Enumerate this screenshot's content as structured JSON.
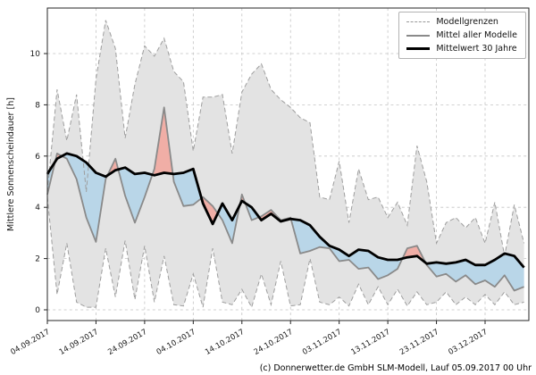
{
  "figure": {
    "caption": "(c) Donnerwetter.de GmbH SLM-Modell, Lauf 05.09.2017 00 Uhr"
  },
  "chart_data": {
    "type": "line",
    "ylabel": "Mittlere Sonnenscheindauer [h]",
    "xlabel": "",
    "ylim": [
      -0.45,
      11.8
    ],
    "y_ticks": [
      0,
      2,
      4,
      6,
      8,
      10
    ],
    "grid": true,
    "legend_position": "top-right",
    "x_tick_days": [
      0,
      10,
      20,
      30,
      40,
      50,
      60,
      70,
      80,
      90
    ],
    "x_tick_labels": [
      "04.09.2017",
      "14.09.2017",
      "24.09.2017",
      "04.10.2017",
      "14.10.2017",
      "24.10.2017",
      "03.11.2017",
      "13.11.2017",
      "23.11.2017",
      "03.12.2017"
    ],
    "x_days": [
      0,
      2,
      4,
      6,
      8,
      10,
      12,
      14,
      16,
      18,
      20,
      22,
      24,
      26,
      28,
      30,
      32,
      34,
      36,
      38,
      40,
      42,
      44,
      46,
      48,
      50,
      52,
      54,
      56,
      58,
      60,
      62,
      64,
      66,
      68,
      70,
      72,
      74,
      76,
      78,
      80,
      82,
      84,
      86,
      88,
      90,
      92,
      94,
      96,
      98
    ],
    "series": [
      {
        "name": "Modellgrenzen oben",
        "values": [
          4.6,
          8.6,
          6.6,
          8.4,
          4.6,
          9.0,
          11.3,
          10.2,
          6.7,
          8.8,
          10.3,
          9.9,
          10.6,
          9.3,
          8.9,
          6.2,
          8.3,
          8.3,
          8.4,
          6.1,
          8.5,
          9.2,
          9.6,
          8.6,
          8.2,
          7.9,
          7.5,
          7.3,
          4.4,
          4.3,
          5.8,
          3.4,
          5.5,
          4.3,
          4.4,
          3.6,
          4.2,
          3.3,
          6.4,
          5.0,
          2.6,
          3.4,
          3.6,
          3.2,
          3.6,
          2.6,
          4.2,
          2.1,
          4.1,
          2.6
        ]
      },
      {
        "name": "Modellgrenzen unten",
        "values": [
          4.4,
          0.6,
          2.6,
          0.3,
          0.1,
          0.1,
          2.4,
          0.5,
          2.7,
          0.4,
          2.5,
          0.3,
          2.1,
          0.2,
          0.15,
          1.4,
          0.1,
          2.4,
          0.3,
          0.2,
          0.8,
          0.1,
          1.4,
          0.2,
          1.9,
          0.15,
          0.2,
          2.0,
          0.3,
          0.2,
          0.5,
          0.15,
          1.0,
          0.2,
          0.9,
          0.2,
          0.8,
          0.15,
          0.7,
          0.2,
          0.3,
          0.7,
          0.2,
          0.5,
          0.2,
          0.6,
          0.2,
          0.7,
          0.2,
          0.3
        ]
      },
      {
        "name": "Mittel aller Modelle",
        "values": [
          4.5,
          6.1,
          5.9,
          5.1,
          3.6,
          2.65,
          5.1,
          5.9,
          4.45,
          3.4,
          4.4,
          5.5,
          7.9,
          5.0,
          4.05,
          4.1,
          4.4,
          4.05,
          3.5,
          2.6,
          4.5,
          3.5,
          3.65,
          3.9,
          3.5,
          3.6,
          2.2,
          2.3,
          2.45,
          2.4,
          1.9,
          1.95,
          1.6,
          1.65,
          1.2,
          1.35,
          1.6,
          2.4,
          2.5,
          1.75,
          1.3,
          1.4,
          1.1,
          1.35,
          1.0,
          1.15,
          0.9,
          1.35,
          0.75,
          0.9
        ]
      },
      {
        "name": "Mittelwert 30 Jahre",
        "values": [
          5.3,
          5.9,
          6.1,
          6.0,
          5.75,
          5.35,
          5.2,
          5.45,
          5.55,
          5.3,
          5.35,
          5.25,
          5.35,
          5.3,
          5.35,
          5.5,
          4.15,
          3.35,
          4.15,
          3.5,
          4.25,
          4.0,
          3.5,
          3.75,
          3.45,
          3.55,
          3.5,
          3.3,
          2.85,
          2.5,
          2.35,
          2.1,
          2.35,
          2.3,
          2.05,
          1.95,
          1.95,
          2.05,
          2.1,
          1.8,
          1.85,
          1.8,
          1.85,
          1.95,
          1.75,
          1.75,
          1.95,
          2.2,
          2.1,
          1.65
        ]
      }
    ],
    "legend": [
      {
        "label": "Modellgrenzen",
        "style": "dashed-gray"
      },
      {
        "label": "Mittel aller Modelle",
        "style": "solid-gray"
      },
      {
        "label": "Mittelwert 30 Jahre",
        "style": "solid-black-thick"
      }
    ],
    "colors": {
      "envelope_fill": "#e3e3e3",
      "envelope_border": "#9e9e9e",
      "above_normal_fill": "#f0aea6",
      "below_normal_fill": "#b9d6e8",
      "model_mean_line": "#8a8a8a",
      "climate_mean_line": "#000000",
      "grid": "#c4c4c4",
      "spine": "#262626",
      "tick_text": "#1a1a1a"
    }
  }
}
